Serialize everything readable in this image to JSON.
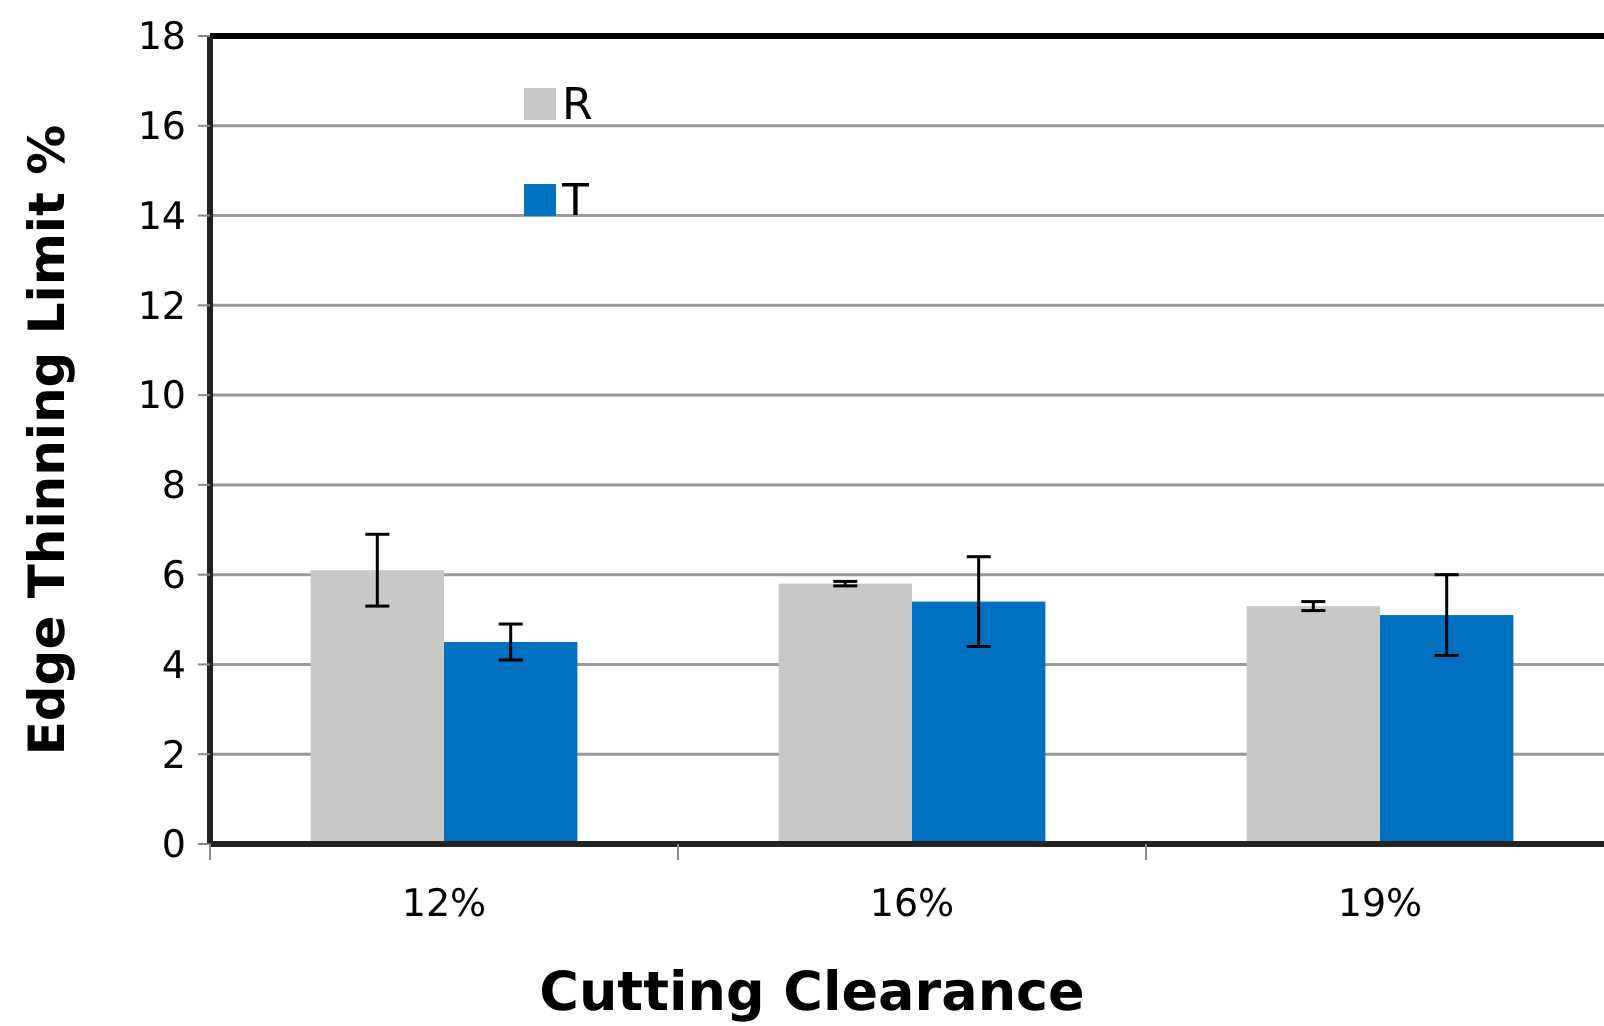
{
  "chart_data": {
    "type": "bar",
    "xlabel": "Cutting Clearance",
    "ylabel": "Edge Thinning Limit %",
    "categories": [
      "12%",
      "16%",
      "19%"
    ],
    "series": [
      {
        "name": "R",
        "color": "#c8c8c8",
        "values": [
          6.1,
          5.8,
          5.3
        ],
        "errors": [
          0.8,
          0.05,
          0.1
        ]
      },
      {
        "name": "T",
        "color": "#0070c0",
        "values": [
          4.5,
          5.4,
          5.1
        ],
        "errors": [
          0.4,
          1.0,
          0.9
        ]
      }
    ],
    "ylim": [
      0,
      18
    ],
    "yticks": [
      0,
      2,
      4,
      6,
      8,
      10,
      12,
      14,
      16,
      18
    ],
    "grid": "y",
    "legend": "top left"
  }
}
